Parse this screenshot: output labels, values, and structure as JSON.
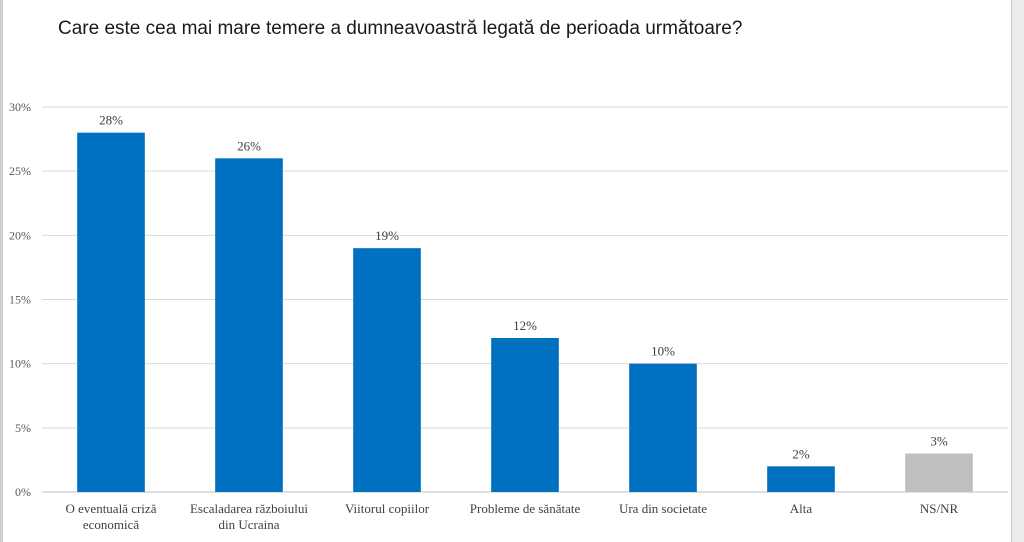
{
  "chart_data": {
    "type": "bar",
    "title": "Care este cea mai mare temere a dumneavoastră legată de perioada următoare?",
    "xlabel": "",
    "ylabel": "",
    "ylim": [
      0,
      30
    ],
    "y_ticks": [
      0,
      5,
      10,
      15,
      20,
      25,
      30
    ],
    "y_tick_format": "%",
    "grid": true,
    "legend": "none",
    "categories": [
      [
        "O eventuală criză",
        "economică"
      ],
      [
        "Escaladarea războiului",
        "din Ucraina"
      ],
      [
        "Viitorul copiilor"
      ],
      [
        "Probleme de sănătate"
      ],
      [
        "Ura din societate"
      ],
      [
        "Alta"
      ],
      [
        "NS/NR"
      ]
    ],
    "values": [
      28,
      26,
      19,
      12,
      10,
      2,
      3
    ],
    "value_labels": [
      "28%",
      "26%",
      "19%",
      "12%",
      "10%",
      "2%",
      "3%"
    ],
    "colors": [
      "#0070c0",
      "#0070c0",
      "#0070c0",
      "#0070c0",
      "#0070c0",
      "#0070c0",
      "#bfbfbf"
    ]
  }
}
